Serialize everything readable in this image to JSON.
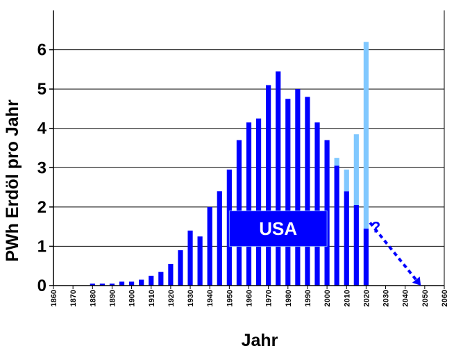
{
  "chart_data": {
    "type": "bar",
    "title": "",
    "xlabel": "Jahr",
    "ylabel": "PWh Erdöl pro Jahr",
    "xlim": [
      1860,
      2060
    ],
    "ylim": [
      0,
      7
    ],
    "x_ticks": [
      "1860",
      "1870",
      "1880",
      "1890",
      "1900",
      "1910",
      "1920",
      "1930",
      "1940",
      "1950",
      "1960",
      "1970",
      "1980",
      "1990",
      "2000",
      "2010",
      "2020",
      "2030",
      "2040",
      "2050",
      "2060"
    ],
    "y_ticks": [
      "0",
      "1",
      "2",
      "3",
      "4",
      "5",
      "6"
    ],
    "grid": "horizontal",
    "colors": {
      "series_0": "#0000ff",
      "series_1": "#80c8ff",
      "forecast": "#0000ff"
    },
    "x": [
      1880,
      1885,
      1890,
      1895,
      1900,
      1905,
      1910,
      1915,
      1920,
      1925,
      1930,
      1935,
      1940,
      1945,
      1950,
      1955,
      1960,
      1965,
      1970,
      1975,
      1980,
      1985,
      1990,
      1995,
      2000,
      2005,
      2010,
      2015,
      2020
    ],
    "series": [
      {
        "values": [
          0.05,
          0.05,
          0.05,
          0.1,
          0.1,
          0.15,
          0.25,
          0.35,
          0.55,
          0.9,
          1.4,
          1.25,
          2.0,
          2.4,
          2.95,
          3.7,
          4.15,
          4.25,
          5.1,
          5.45,
          4.75,
          5.0,
          4.8,
          4.15,
          3.7,
          3.05,
          2.4,
          2.05,
          1.45
        ]
      },
      {
        "values": [
          0,
          0,
          0,
          0,
          0,
          0,
          0,
          0,
          0,
          0,
          0,
          0,
          0,
          0,
          0,
          0,
          0,
          0,
          0,
          0,
          0,
          0,
          0,
          0,
          0,
          0.2,
          0.55,
          1.8,
          4.75
        ]
      }
    ],
    "annotations": [
      {
        "text": "USA",
        "x_range": [
          1950,
          2000
        ],
        "y_range": [
          1.0,
          1.9
        ]
      },
      {
        "text": "?",
        "x": 2025,
        "y": 1.35
      }
    ],
    "forecast_arrow": {
      "from": [
        2022,
        1.6
      ],
      "to": [
        2048,
        0.0
      ]
    }
  }
}
